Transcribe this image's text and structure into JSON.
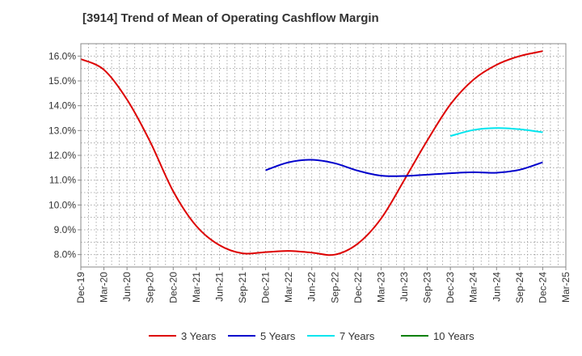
{
  "chart_data": {
    "type": "line",
    "title": "[3914]  Trend of Mean of Operating Cashflow Margin",
    "xlabel": "",
    "ylabel": "",
    "x_ticks": [
      "Dec-19",
      "Mar-20",
      "Jun-20",
      "Sep-20",
      "Dec-20",
      "Mar-21",
      "Jun-21",
      "Sep-21",
      "Dec-21",
      "Mar-22",
      "Jun-22",
      "Sep-22",
      "Dec-22",
      "Mar-23",
      "Jun-23",
      "Sep-23",
      "Dec-23",
      "Mar-24",
      "Jun-24",
      "Sep-24",
      "Dec-24",
      "Mar-25"
    ],
    "y_ticks": [
      "8.0%",
      "9.0%",
      "10.0%",
      "11.0%",
      "12.0%",
      "13.0%",
      "14.0%",
      "15.0%",
      "16.0%"
    ],
    "ylim": [
      7.5,
      16.5
    ],
    "grid": true,
    "legend_position": "bottom",
    "series": [
      {
        "name": "3 Years",
        "color": "#dd0000",
        "points": [
          [
            "Dec-19",
            15.88
          ],
          [
            "Mar-20",
            15.45
          ],
          [
            "Jun-20",
            14.25
          ],
          [
            "Sep-20",
            12.55
          ],
          [
            "Dec-20",
            10.55
          ],
          [
            "Mar-21",
            9.15
          ],
          [
            "Jun-21",
            8.38
          ],
          [
            "Sep-21",
            8.05
          ],
          [
            "Dec-21",
            8.1
          ],
          [
            "Mar-22",
            8.15
          ],
          [
            "Jun-22",
            8.08
          ],
          [
            "Sep-22",
            8.0
          ],
          [
            "Dec-22",
            8.45
          ],
          [
            "Mar-23",
            9.45
          ],
          [
            "Jun-23",
            11.0
          ],
          [
            "Sep-23",
            12.6
          ],
          [
            "Dec-23",
            14.05
          ],
          [
            "Mar-24",
            15.05
          ],
          [
            "Jun-24",
            15.65
          ],
          [
            "Sep-24",
            16.0
          ],
          [
            "Dec-24",
            16.2
          ]
        ]
      },
      {
        "name": "5 Years",
        "color": "#0000cc",
        "points": [
          [
            "Dec-21",
            11.4
          ],
          [
            "Mar-22",
            11.72
          ],
          [
            "Jun-22",
            11.82
          ],
          [
            "Sep-22",
            11.68
          ],
          [
            "Dec-22",
            11.38
          ],
          [
            "Mar-23",
            11.18
          ],
          [
            "Jun-23",
            11.17
          ],
          [
            "Sep-23",
            11.22
          ],
          [
            "Dec-23",
            11.28
          ],
          [
            "Mar-24",
            11.32
          ],
          [
            "Jun-24",
            11.3
          ],
          [
            "Sep-24",
            11.42
          ],
          [
            "Dec-24",
            11.72
          ]
        ]
      },
      {
        "name": "7 Years",
        "color": "#00e5ee",
        "points": [
          [
            "Dec-23",
            12.78
          ],
          [
            "Mar-24",
            13.02
          ],
          [
            "Jun-24",
            13.1
          ],
          [
            "Sep-24",
            13.05
          ],
          [
            "Dec-24",
            12.93
          ]
        ]
      },
      {
        "name": "10 Years",
        "color": "#008000",
        "points": []
      }
    ]
  }
}
